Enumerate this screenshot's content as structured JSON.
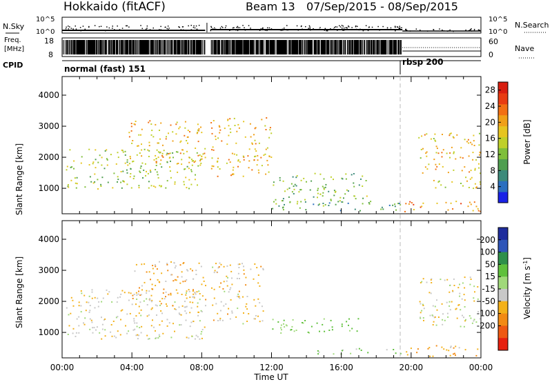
{
  "header": {
    "station": "Hokkaido (fitACF)",
    "beam": "Beam 13",
    "date_range": "07/Sep/2015 - 08/Sep/2015"
  },
  "panels": {
    "nsky": {
      "label": "N.Sky",
      "ticks": [
        "10^5",
        "10^0"
      ],
      "right_ticks": [
        "10^5",
        "10^0"
      ],
      "right_label": "N.Search"
    },
    "freq": {
      "label_line1": "Freq.",
      "label_line2": "[MHz]",
      "ticks": [
        "18",
        "8"
      ],
      "right_ticks": [
        "60",
        "0"
      ],
      "right_label": "Nave"
    },
    "cpid": {
      "label": "CPID",
      "segments": [
        {
          "text": "normal (fast) 151",
          "start_hour": 0.0
        },
        {
          "text": "rbsp 200",
          "start_hour": 19.5
        }
      ]
    }
  },
  "chart_data": [
    {
      "type": "heatmap",
      "name": "power",
      "ylabel": "Slant Range [km]",
      "xlabel": "Time UT",
      "x_ticks": [
        "00:00",
        "04:00",
        "08:00",
        "12:00",
        "16:00",
        "20:00",
        "00:00"
      ],
      "xlim_hours": [
        0,
        24
      ],
      "y_ticks": [
        1000,
        2000,
        3000,
        4000
      ],
      "ylim_km": [
        180,
        4600
      ],
      "colorbar": {
        "label": "Power [dB]",
        "ticks": [
          4,
          8,
          12,
          16,
          20,
          24,
          28
        ],
        "range": [
          0,
          30
        ],
        "colors": [
          "#1a22e6",
          "#2c6fbf",
          "#3d8a7a",
          "#4f9e50",
          "#7fbf3a",
          "#bfd02a",
          "#e6c520",
          "#f0a018",
          "#f27014",
          "#e83c12",
          "#d81e10"
        ]
      },
      "scatter_regions": [
        {
          "hours": [
            0.2,
            8.2
          ],
          "km": [
            1000,
            2300
          ],
          "mean_power": 14
        },
        {
          "hours": [
            3.8,
            8.2
          ],
          "km": [
            1800,
            3200
          ],
          "mean_power": 19
        },
        {
          "hours": [
            8.5,
            12.0
          ],
          "km": [
            1400,
            3300
          ],
          "mean_power": 19
        },
        {
          "hours": [
            12.0,
            17.5
          ],
          "km": [
            500,
            1500
          ],
          "mean_power": 12
        },
        {
          "hours": [
            12.0,
            19.4
          ],
          "km": [
            300,
            600
          ],
          "mean_power": 9
        },
        {
          "hours": [
            19.6,
            24.0
          ],
          "km": [
            250,
            600
          ],
          "mean_power": 22
        },
        {
          "hours": [
            20.4,
            24.0
          ],
          "km": [
            1500,
            2800
          ],
          "mean_power": 18
        },
        {
          "hours": [
            21.0,
            24.0
          ],
          "km": [
            1000,
            1400
          ],
          "mean_power": 16
        }
      ]
    },
    {
      "type": "heatmap",
      "name": "velocity",
      "ylabel": "Slant Range [km]",
      "xlabel": "Time UT",
      "x_ticks": [
        "00:00",
        "04:00",
        "08:00",
        "12:00",
        "16:00",
        "20:00",
        "00:00"
      ],
      "xlim_hours": [
        0,
        24
      ],
      "y_ticks": [
        1000,
        2000,
        3000,
        4000
      ],
      "ylim_km": [
        180,
        4600
      ],
      "colorbar": {
        "label": "Velocity [m s^-1]",
        "ticks": [
          200,
          100,
          50,
          15,
          -15,
          -50,
          -100,
          -200
        ],
        "colors": [
          "#1f2c9c",
          "#2f55b8",
          "#2e8f4a",
          "#5fc03c",
          "#a0d97a",
          "#c8c8c8",
          "#f3b11a",
          "#f28a14",
          "#ee5812",
          "#e6200f"
        ]
      },
      "scatter_regions": [
        {
          "hours": [
            0.2,
            8.2
          ],
          "km": [
            800,
            2400
          ],
          "mean_velocity": -10
        },
        {
          "hours": [
            4.0,
            8.2
          ],
          "km": [
            1800,
            3300
          ],
          "mean_velocity": -30
        },
        {
          "hours": [
            8.5,
            11.5
          ],
          "km": [
            1300,
            3300
          ],
          "mean_velocity": -20
        },
        {
          "hours": [
            12.0,
            17.0
          ],
          "km": [
            1000,
            1500
          ],
          "mean_velocity": 60
        },
        {
          "hours": [
            14.5,
            19.4
          ],
          "km": [
            300,
            500
          ],
          "mean_velocity": 50
        },
        {
          "hours": [
            19.6,
            24.0
          ],
          "km": [
            250,
            600
          ],
          "mean_velocity": -40
        },
        {
          "hours": [
            20.4,
            24.0
          ],
          "km": [
            1200,
            2800
          ],
          "mean_velocity": 0
        }
      ]
    }
  ],
  "footer": {
    "xlabel": "Time UT"
  }
}
